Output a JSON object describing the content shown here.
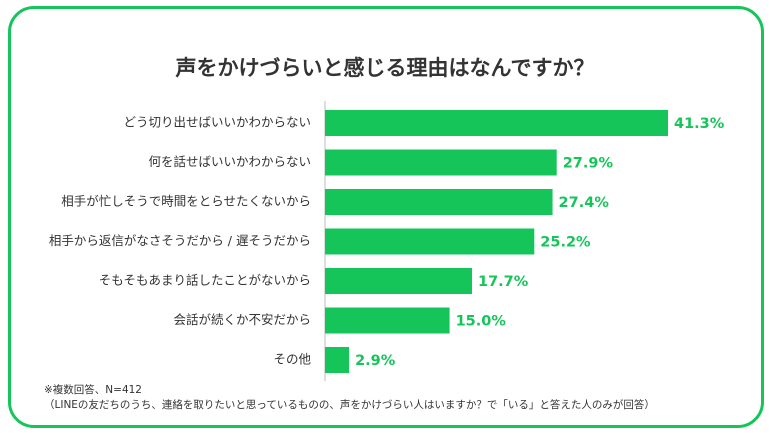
{
  "colors": {
    "accent": "#16c55a",
    "bar": "#16c55a",
    "value_text": "#16c55a",
    "text": "#333333"
  },
  "chart_data": {
    "type": "bar",
    "orientation": "horizontal",
    "title": "声をかけづらいと感じる理由はなんですか？",
    "categories": [
      "どう切り出せばいいかわからない",
      "何を話せばいいかわからない",
      "相手が忙しそうで時間をとらせたくないから",
      "相手から返信がなさそうだから / 遅そうだから",
      "そもそもあまり話したことがないから",
      "会話が続くか不安だから",
      "その他"
    ],
    "values": [
      41.3,
      27.9,
      27.4,
      25.2,
      17.7,
      15.0,
      2.9
    ],
    "value_labels": [
      "41.3%",
      "27.9%",
      "27.4%",
      "25.2%",
      "17.7%",
      "15.0%",
      "2.9%"
    ],
    "unit": "%",
    "xlim": [
      0,
      41.3
    ]
  },
  "notes": {
    "line1": "※複数回答、N=412",
    "line2": "（LINEの友だちのうち、連絡を取りたいと思っているものの、声をかけづらい人はいますか？で「いる」と答えた人のみが回答）"
  }
}
